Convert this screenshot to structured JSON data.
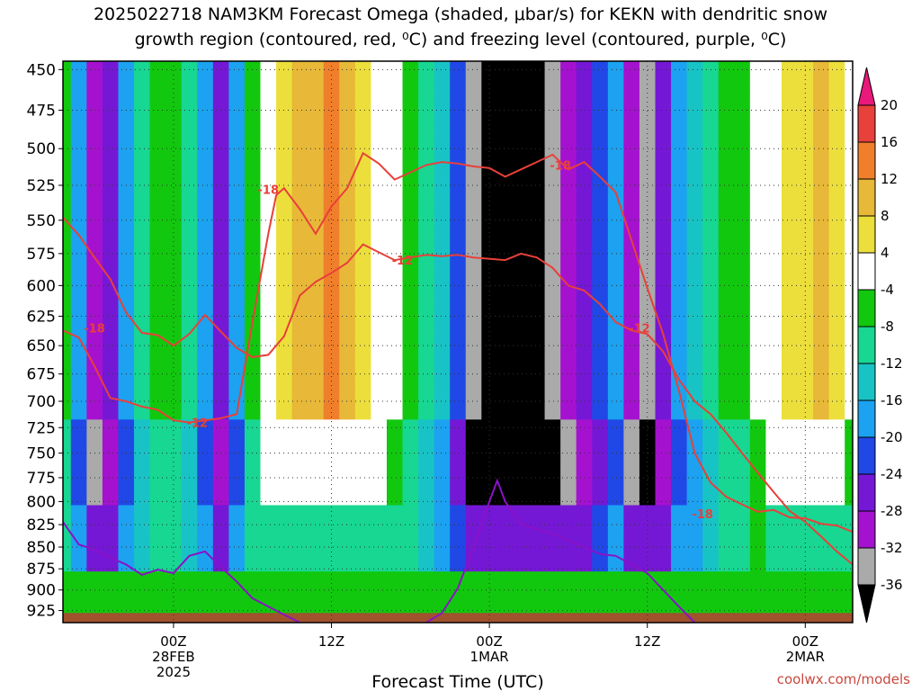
{
  "title_line1": "2025022718 NAM3KM Forecast Omega (shaded, μbar/s) for KEKN with dendritic snow",
  "title_line2": "growth region (contoured, red, ⁰C) and freezing level (contoured, purple, ⁰C)",
  "credit": "coolwx.com/models",
  "chart_data": {
    "type": "heatmap",
    "title": "2025022718 NAM3KM Forecast Omega (shaded, μbar/s) for KEKN with dendritic snow growth region (contoured, red, ⁰C) and freezing level (contoured, purple, ⁰C)",
    "xlabel": "Forecast Time (UTC)",
    "ylabel": "",
    "x_range_hours": [
      -7,
      43
    ],
    "y_range_hPa": [
      940,
      445
    ],
    "y_ticks": [
      450,
      475,
      500,
      525,
      550,
      575,
      600,
      625,
      650,
      675,
      700,
      725,
      750,
      775,
      800,
      825,
      850,
      875,
      900,
      925
    ],
    "x_ticks": [
      {
        "hour": 0,
        "lines": [
          "00Z",
          "28FEB",
          "2025"
        ]
      },
      {
        "hour": 10,
        "lines": [
          "12Z"
        ]
      },
      {
        "hour": 20,
        "lines": [
          "00Z",
          "1MAR"
        ]
      },
      {
        "hour": 30,
        "lines": [
          "12Z"
        ]
      },
      {
        "hour": 40,
        "lines": [
          "00Z",
          "2MAR"
        ]
      }
    ],
    "grid": true,
    "colorbar": {
      "labels": [
        "20",
        "16",
        "12",
        "8",
        "4",
        "-4",
        "-8",
        "-12",
        "-16",
        "-20",
        "-24",
        "-28",
        "-32",
        "-36"
      ],
      "bands": [
        {
          "lo": 20,
          "hi": 24,
          "color": "#e8197a"
        },
        {
          "lo": 16,
          "hi": 20,
          "color": "#e8403a"
        },
        {
          "lo": 12,
          "hi": 16,
          "color": "#f07f2b"
        },
        {
          "lo": 8,
          "hi": 12,
          "color": "#e8b838"
        },
        {
          "lo": 4,
          "hi": 8,
          "color": "#ecdf3c"
        },
        {
          "lo": -4,
          "hi": 4,
          "color": "#ffffff"
        },
        {
          "lo": -8,
          "hi": -4,
          "color": "#12c80e"
        },
        {
          "lo": -12,
          "hi": -8,
          "color": "#17d792"
        },
        {
          "lo": -16,
          "hi": -12,
          "color": "#18c3c6"
        },
        {
          "lo": -20,
          "hi": -16,
          "color": "#1ca2f0"
        },
        {
          "lo": -24,
          "hi": -20,
          "color": "#2048e6"
        },
        {
          "lo": -28,
          "hi": -24,
          "color": "#7518d6"
        },
        {
          "lo": -32,
          "hi": -28,
          "color": "#a512cf"
        },
        {
          "lo": -36,
          "hi": -32,
          "color": "#aaaaaa"
        },
        {
          "lo": -40,
          "hi": -36,
          "color": "#000000"
        }
      ]
    },
    "omega_column_profiles": [
      {
        "hour": -7,
        "value": -8
      },
      {
        "hour": -6,
        "value": -20
      },
      {
        "hour": -5,
        "value": -32
      },
      {
        "hour": -4,
        "value": -28
      },
      {
        "hour": -3,
        "value": -20
      },
      {
        "hour": -2,
        "value": -12
      },
      {
        "hour": -1,
        "value": -8
      },
      {
        "hour": 0,
        "value": -6
      },
      {
        "hour": 1,
        "value": -12
      },
      {
        "hour": 2,
        "value": -20
      },
      {
        "hour": 3,
        "value": -28
      },
      {
        "hour": 4,
        "value": -20
      },
      {
        "hour": 5,
        "value": -8
      },
      {
        "hour": 6,
        "value": 2
      },
      {
        "hour": 7,
        "value": 6
      },
      {
        "hour": 8,
        "value": 8
      },
      {
        "hour": 9,
        "value": 10
      },
      {
        "hour": 10,
        "value": 12
      },
      {
        "hour": 11,
        "value": 8
      },
      {
        "hour": 12,
        "value": 6
      },
      {
        "hour": 13,
        "value": 2
      },
      {
        "hour": 14,
        "value": -4
      },
      {
        "hour": 15,
        "value": -8
      },
      {
        "hour": 16,
        "value": -12
      },
      {
        "hour": 17,
        "value": -16
      },
      {
        "hour": 18,
        "value": -24
      },
      {
        "hour": 19,
        "value": -36
      },
      {
        "hour": 20,
        "value": -40
      },
      {
        "hour": 21,
        "value": -40
      },
      {
        "hour": 22,
        "value": -40
      },
      {
        "hour": 23,
        "value": -40
      },
      {
        "hour": 24,
        "value": -36
      },
      {
        "hour": 25,
        "value": -32
      },
      {
        "hour": 26,
        "value": -28
      },
      {
        "hour": 27,
        "value": -24
      },
      {
        "hour": 28,
        "value": -20
      },
      {
        "hour": 29,
        "value": -32
      },
      {
        "hour": 30,
        "value": -36
      },
      {
        "hour": 31,
        "value": -28
      },
      {
        "hour": 32,
        "value": -20
      },
      {
        "hour": 33,
        "value": -16
      },
      {
        "hour": 34,
        "value": -12
      },
      {
        "hour": 35,
        "value": -8
      },
      {
        "hour": 36,
        "value": -6
      },
      {
        "hour": 37,
        "value": -2
      },
      {
        "hour": 38,
        "value": 2
      },
      {
        "hour": 39,
        "value": 4
      },
      {
        "hour": 40,
        "value": 6
      },
      {
        "hour": 41,
        "value": 8
      },
      {
        "hour": 42,
        "value": 4
      },
      {
        "hour": 43,
        "value": -4
      }
    ],
    "contours_red": [
      {
        "label": "-18",
        "label_points": [
          {
            "hour": -5,
            "p": 635
          },
          {
            "hour": 6,
            "p": 528
          },
          {
            "hour": 33.5,
            "p": 813
          },
          {
            "hour": 24.5,
            "p": 511
          }
        ],
        "points": [
          [
            -7,
            637
          ],
          [
            -6,
            643
          ],
          [
            -5,
            668
          ],
          [
            -4,
            697
          ],
          [
            -3,
            700
          ],
          [
            -2,
            705
          ],
          [
            -1,
            708
          ],
          [
            0,
            718
          ],
          [
            1,
            720
          ],
          [
            2,
            718
          ],
          [
            3,
            716
          ],
          [
            4,
            712
          ],
          [
            5,
            630
          ],
          [
            6,
            560
          ],
          [
            6.5,
            532
          ],
          [
            7,
            527
          ],
          [
            8,
            542
          ],
          [
            9,
            560
          ],
          [
            10,
            540
          ],
          [
            11,
            527
          ],
          [
            12,
            503
          ],
          [
            13,
            510
          ],
          [
            14,
            521
          ],
          [
            15,
            516
          ],
          [
            16,
            511
          ],
          [
            17,
            509
          ],
          [
            18,
            510
          ],
          [
            19,
            512
          ],
          [
            20,
            513
          ],
          [
            21,
            519
          ],
          [
            22,
            514
          ],
          [
            23,
            509
          ],
          [
            24,
            504
          ],
          [
            25,
            514
          ],
          [
            26,
            509
          ],
          [
            27,
            519
          ],
          [
            28,
            530
          ],
          [
            29,
            565
          ],
          [
            30,
            602
          ],
          [
            31,
            640
          ],
          [
            32,
            690
          ],
          [
            33,
            750
          ],
          [
            34,
            780
          ],
          [
            35,
            795
          ],
          [
            36,
            803
          ],
          [
            37,
            811
          ],
          [
            38,
            809
          ],
          [
            39,
            817
          ],
          [
            40,
            818
          ],
          [
            41,
            824
          ],
          [
            42,
            826
          ],
          [
            43,
            833
          ]
        ]
      },
      {
        "label": "-12",
        "label_points": [
          {
            "hour": 1.5,
            "p": 720
          },
          {
            "hour": 14.5,
            "p": 580
          },
          {
            "hour": 29.5,
            "p": 635
          }
        ],
        "points": [
          [
            -7,
            548
          ],
          [
            -6,
            561
          ],
          [
            -5,
            578
          ],
          [
            -4,
            595
          ],
          [
            -3,
            622
          ],
          [
            -2,
            639
          ],
          [
            -1,
            641
          ],
          [
            0,
            650
          ],
          [
            1,
            640
          ],
          [
            2,
            624
          ],
          [
            3,
            638
          ],
          [
            4,
            652
          ],
          [
            5,
            660
          ],
          [
            6,
            658
          ],
          [
            7,
            642
          ],
          [
            8,
            608
          ],
          [
            9,
            597
          ],
          [
            10,
            590
          ],
          [
            11,
            582
          ],
          [
            12,
            568
          ],
          [
            13,
            574
          ],
          [
            14,
            580
          ],
          [
            15,
            578
          ],
          [
            16,
            576
          ],
          [
            17,
            577
          ],
          [
            18,
            576
          ],
          [
            19,
            578
          ],
          [
            20,
            579
          ],
          [
            21,
            580
          ],
          [
            22,
            575
          ],
          [
            23,
            578
          ],
          [
            24,
            586
          ],
          [
            25,
            600
          ],
          [
            26,
            604
          ],
          [
            27,
            615
          ],
          [
            28,
            630
          ],
          [
            29,
            637
          ],
          [
            30,
            640
          ],
          [
            31,
            655
          ],
          [
            32,
            680
          ],
          [
            33,
            700
          ],
          [
            34,
            712
          ],
          [
            35,
            730
          ],
          [
            36,
            750
          ],
          [
            37,
            770
          ],
          [
            38,
            790
          ],
          [
            39,
            810
          ],
          [
            40,
            822
          ],
          [
            41,
            838
          ],
          [
            42,
            855
          ],
          [
            43,
            870
          ]
        ]
      }
    ],
    "contours_purple": [
      {
        "label": "freezing level",
        "points": [
          [
            -7,
            822
          ],
          [
            -6,
            847
          ],
          [
            -5,
            853
          ],
          [
            -4,
            862
          ],
          [
            -3,
            870
          ],
          [
            -2,
            882
          ],
          [
            -1,
            876
          ],
          [
            0,
            880
          ],
          [
            1,
            860
          ],
          [
            2,
            855
          ],
          [
            3,
            873
          ],
          [
            4,
            890
          ],
          [
            5,
            910
          ],
          [
            6,
            920
          ],
          [
            7,
            930
          ],
          [
            8,
            940
          ]
        ]
      },
      {
        "label": "freezing level",
        "points": [
          [
            16,
            940
          ],
          [
            17,
            928
          ],
          [
            18,
            898
          ],
          [
            19,
            850
          ],
          [
            20,
            800
          ],
          [
            20.5,
            778
          ],
          [
            21,
            800
          ],
          [
            22,
            824
          ],
          [
            23,
            830
          ],
          [
            24,
            835
          ],
          [
            25,
            842
          ],
          [
            26,
            850
          ],
          [
            27,
            858
          ],
          [
            28,
            860
          ],
          [
            29,
            870
          ],
          [
            30,
            880
          ],
          [
            31,
            900
          ],
          [
            32,
            920
          ],
          [
            33,
            940
          ]
        ]
      }
    ]
  }
}
